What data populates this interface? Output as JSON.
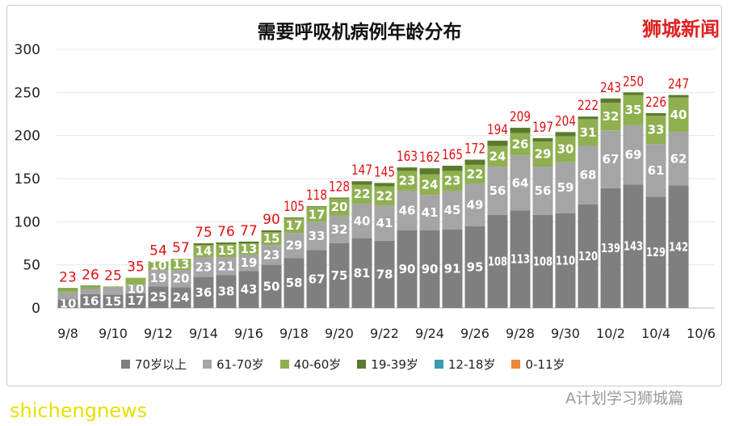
{
  "chart_data": {
    "type": "bar",
    "stacked": true,
    "title": "需要呼吸机病例年龄分布",
    "ylim": [
      0,
      300
    ],
    "yticks": [
      0,
      50,
      100,
      150,
      200,
      250,
      300
    ],
    "grid": true,
    "categories": [
      "9/8",
      "9/9",
      "9/10",
      "9/11",
      "9/12",
      "9/13",
      "9/14",
      "9/15",
      "9/16",
      "9/17",
      "9/18",
      "9/19",
      "9/20",
      "9/21",
      "9/22",
      "9/23",
      "9/24",
      "9/25",
      "9/26",
      "9/27",
      "9/28",
      "9/29",
      "9/30",
      "10/1",
      "10/2",
      "10/3",
      "10/4",
      "10/5"
    ],
    "xtick_labels": [
      "9/8",
      "9/10",
      "9/12",
      "9/14",
      "9/16",
      "9/18",
      "9/20",
      "9/22",
      "9/24",
      "9/26",
      "9/28",
      "9/30",
      "10/2",
      "10/4",
      "10/6"
    ],
    "legend_position": "bottom",
    "series": [
      {
        "name": "70岁以上",
        "color": "#7f7f7f",
        "values": [
          10,
          16,
          15,
          17,
          25,
          24,
          36,
          38,
          43,
          50,
          58,
          67,
          75,
          81,
          78,
          90,
          90,
          91,
          95,
          108,
          113,
          108,
          110,
          120,
          139,
          143,
          129,
          142
        ]
      },
      {
        "name": "61-70岁",
        "color": "#a5a5a5",
        "values": [
          8,
          6,
          9,
          10,
          19,
          20,
          23,
          21,
          19,
          23,
          29,
          33,
          32,
          40,
          41,
          46,
          41,
          45,
          49,
          56,
          64,
          56,
          59,
          68,
          67,
          69,
          61,
          62
        ]
      },
      {
        "name": "40-60岁",
        "color": "#8fb050",
        "values": [
          4,
          3,
          1,
          8,
          10,
          13,
          14,
          15,
          13,
          15,
          17,
          17,
          20,
          22,
          22,
          23,
          24,
          23,
          22,
          24,
          26,
          29,
          30,
          31,
          32,
          35,
          33,
          40
        ]
      },
      {
        "name": "19-39岁",
        "color": "#5c7a2e",
        "values": [
          1,
          1,
          0,
          0,
          0,
          0,
          2,
          2,
          2,
          2,
          1,
          1,
          1,
          4,
          4,
          4,
          7,
          6,
          6,
          6,
          6,
          4,
          5,
          3,
          5,
          3,
          3,
          3
        ]
      },
      {
        "name": "12-18岁",
        "color": "#3a9ab0",
        "values": [
          0,
          0,
          0,
          0,
          0,
          0,
          0,
          0,
          0,
          0,
          0,
          0,
          0,
          0,
          0,
          0,
          0,
          0,
          0,
          0,
          0,
          0,
          0,
          0,
          0,
          0,
          0,
          0
        ]
      },
      {
        "name": "0-11岁",
        "color": "#e8883a",
        "values": [
          0,
          0,
          0,
          0,
          0,
          0,
          0,
          0,
          0,
          0,
          0,
          0,
          0,
          0,
          0,
          0,
          0,
          0,
          0,
          0,
          0,
          0,
          0,
          0,
          0,
          0,
          0,
          0
        ]
      }
    ],
    "totals": [
      23,
      26,
      25,
      35,
      54,
      57,
      75,
      76,
      77,
      90,
      105,
      118,
      128,
      147,
      145,
      163,
      162,
      165,
      172,
      194,
      209,
      197,
      204,
      222,
      243,
      250,
      226,
      247
    ],
    "total_label_color": "#e01010"
  },
  "watermarks": {
    "top_right": "狮城新闻",
    "bottom_left": "shichengnews",
    "bottom_right": "A计划学习狮城篇"
  }
}
